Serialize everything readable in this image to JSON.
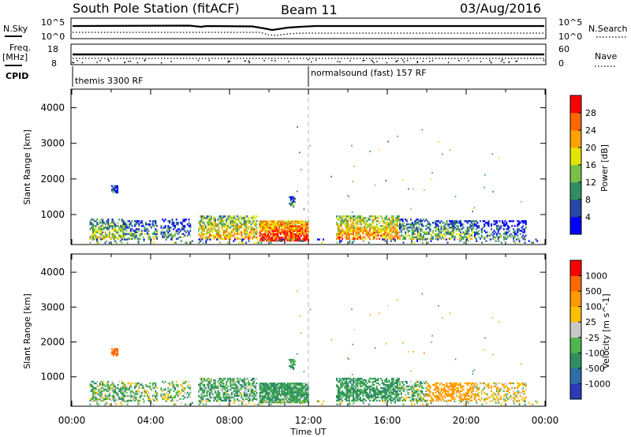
{
  "header": {
    "title": "South Pole Station (fitACF)",
    "beam": "Beam 11",
    "date": "03/Aug/2016"
  },
  "top_panels": {
    "nsky_label": "N.Sky",
    "nsky_ticks": [
      "10^5",
      "10^0"
    ],
    "nsearch_label": "N.Search",
    "nsearch_ticks": [
      "10^5",
      "10^0"
    ],
    "freq_label": "Freq.",
    "freq_unit": "[MHz]",
    "freq_ticks": [
      "18",
      "8"
    ],
    "nave_label": "Nave",
    "nave_ticks": [
      "60",
      "0"
    ],
    "cpid_label": "CPID",
    "cpid_segments": [
      {
        "name": "themis 3300 RF",
        "start_hour": 0
      },
      {
        "name": "normalsound (fast) 157 RF",
        "start_hour": 12
      }
    ]
  },
  "chart_data": [
    {
      "type": "heatmap",
      "name": "power",
      "ylabel": "Slant Range [km]",
      "ylim": [
        180,
        4500
      ],
      "y_ticks": [
        1000,
        2000,
        3000,
        4000
      ],
      "xlim": [
        0,
        24
      ],
      "colorbar_label": "Power [dB]",
      "colorbar_ticks": [
        "28",
        "24",
        "20",
        "16",
        "12",
        "8",
        "4"
      ],
      "colorbar_colors": [
        "#0000ff",
        "#2848a8",
        "#2f8f63",
        "#79c04a",
        "#e4e400",
        "#ffa200",
        "#ff6600",
        "#ff0000"
      ],
      "range_limits": [
        0,
        32
      ]
    },
    {
      "type": "heatmap",
      "name": "velocity",
      "ylabel": "Slant Range [km]",
      "ylim": [
        180,
        4500
      ],
      "y_ticks": [
        1000,
        2000,
        3000,
        4000
      ],
      "xlim": [
        0,
        24
      ],
      "xlabel": "Time UT",
      "x_ticks": [
        "00:00",
        "04:00",
        "08:00",
        "12:00",
        "16:00",
        "20:00",
        "00:00"
      ],
      "colorbar_label": "Velocity [m s^-1]",
      "colorbar_ticks": [
        "1000",
        "500",
        "100",
        "25",
        "-25",
        "-100",
        "-500",
        "-1000"
      ],
      "colorbar_colors": [
        "#2a3bb5",
        "#2d6fa8",
        "#2f8f63",
        "#4fb54f",
        "#c8c8c8",
        "#ffc000",
        "#ff9a00",
        "#ff6a00",
        "#ff0000"
      ],
      "range_limits": [
        -1200,
        1200
      ]
    }
  ]
}
